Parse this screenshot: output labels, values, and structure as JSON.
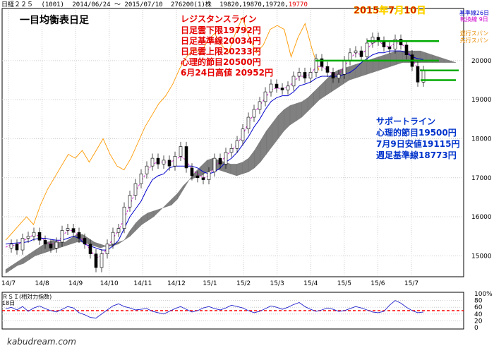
{
  "header": {
    "symbol": "日経２２５",
    "code": "(1001)",
    "range": "2014/06/24 ～ 2015/07/10",
    "volume": "276200(1)株",
    "ohlc": "19820,19870,19720,",
    "last": "19770"
  },
  "chart_title": "一目均衡表日足",
  "date_title": "2015年7月10日",
  "resistance": {
    "heading": "レジスタンスライン",
    "lines": [
      "日足雲下限19792円",
      "日足基準線20034円",
      "日足雲上限20233円",
      "心理的節目20500円",
      "6月24日高値 20952円"
    ]
  },
  "support": {
    "heading": "サポートライン",
    "lines": [
      "心理的節目19500円",
      "7月9日安値19115円",
      "週足基準線18773円"
    ]
  },
  "legend": {
    "kijun": "基準線26日",
    "tenkan": "転換線 9日",
    "chikou": "遅行スパン",
    "senko": "先行スパン"
  },
  "colors": {
    "kijun": "#0000cc",
    "tenkan": "#cc00cc",
    "chikou": "#ff9900",
    "cloud": "#808080",
    "rsi": "#2222cc",
    "support_line": "#00aa00",
    "rsi_ref": "#ff0000"
  },
  "rsi_label": "ＲＳＩ(相対力指数)",
  "rsi_period": "18日",
  "watermark": "kabudream.com",
  "chart_data": {
    "type": "line",
    "x_ticks": [
      "14/7",
      "14/8",
      "14/9",
      "14/10",
      "14/11",
      "14/12",
      "15/1",
      "15/2",
      "15/3",
      "15/4",
      "15/5",
      "15/6",
      "15/7"
    ],
    "y_ticks": [
      15000,
      16000,
      17000,
      18000,
      19000,
      20000
    ],
    "ylim": [
      14500,
      21300
    ],
    "horizontal_levels": [
      20500,
      20000,
      19750,
      19500
    ],
    "series": [
      {
        "key": "price",
        "values": [
          15200,
          15300,
          15150,
          15450,
          15500,
          15600,
          15400,
          15300,
          15200,
          15350,
          15650,
          15700,
          15600,
          15450,
          15300,
          15050,
          14700,
          15050,
          15300,
          15600,
          15700,
          16250,
          16550,
          16850,
          17100,
          17300,
          17500,
          17350,
          17450,
          17300,
          17550,
          17800,
          17250,
          17050,
          17000,
          16950,
          17150,
          17500,
          17350,
          17650,
          17750,
          17950,
          18250,
          18550,
          18750,
          18950,
          19200,
          19400,
          19300,
          19250,
          19350,
          19600,
          19700,
          19550,
          19700,
          20050,
          19850,
          19700,
          19550,
          19650,
          20000,
          20200,
          20250,
          20100,
          20450,
          20600,
          20500,
          20350,
          20300,
          20550,
          20400,
          20150,
          19850,
          19450,
          19750
        ]
      },
      {
        "key": "kijun",
        "values": [
          15300,
          15320,
          15330,
          15340,
          15360,
          15420,
          15450,
          15450,
          15420,
          15400,
          15400,
          15450,
          15500,
          15450,
          15300,
          15250,
          15200,
          15150,
          15150,
          15250,
          15400,
          15700,
          16000,
          16200,
          16400,
          16700,
          16950,
          17050,
          17100,
          17250,
          17300,
          17300,
          17300,
          17300,
          17250,
          17150,
          17100,
          17150,
          17250,
          17400,
          17500,
          17650,
          17850,
          18050,
          18300,
          18500,
          18750,
          18950,
          19050,
          19100,
          19100,
          19200,
          19350,
          19400,
          19450,
          19550,
          19600,
          19600,
          19600,
          19600,
          19650,
          19700,
          19800,
          19950,
          20050,
          20150,
          20200,
          20200,
          20250,
          20250,
          20250,
          20200,
          20100,
          20050,
          20030
        ]
      },
      {
        "key": "tenkan",
        "values": [
          15220,
          15280,
          15260,
          15380,
          15450,
          15550,
          15500,
          15380,
          15300,
          15320,
          15500,
          15650,
          15650,
          15500,
          15350,
          15150,
          14950,
          15000,
          15200,
          15450,
          15650,
          15950,
          16300,
          16650,
          16900,
          17150,
          17350,
          17400,
          17400,
          17400,
          17450,
          17550,
          17450,
          17200,
          17100,
          17000,
          17050,
          17300,
          17400,
          17550,
          17700,
          17850,
          18100,
          18400,
          18650,
          18850,
          19050,
          19250,
          19300,
          19280,
          19320,
          19450,
          19600,
          19600,
          19650,
          19850,
          19850,
          19750,
          19650,
          19650,
          19850,
          20050,
          20200,
          20150,
          20300,
          20450,
          20500,
          20400,
          20350,
          20450,
          20450,
          20300,
          20050,
          19800,
          19750
        ]
      },
      {
        "key": "senkou_a",
        "values": [
          14650,
          14750,
          14850,
          14950,
          15050,
          15150,
          15250,
          15350,
          15400,
          15350,
          15350,
          15450,
          15550,
          15550,
          15450,
          15350,
          15300,
          15250,
          15250,
          15300,
          15400,
          15650,
          15850,
          16000,
          16100,
          16150,
          16200,
          16250,
          16300,
          16450,
          16700,
          16950,
          17150,
          17300,
          17450,
          17500,
          17450,
          17400,
          17350,
          17350,
          17400,
          17500,
          17700,
          17950,
          18200,
          18400,
          18600,
          18750,
          18850,
          18900,
          18950,
          19050,
          19200,
          19350,
          19500,
          19650,
          19750,
          19800,
          19850,
          19900,
          19950,
          20000,
          20050,
          20100,
          20150,
          20200,
          20250,
          20250,
          20250,
          20250,
          20250,
          20200,
          20150,
          20100,
          20050,
          20000,
          19950
        ]
      },
      {
        "key": "senkou_b",
        "values": [
          14550,
          14650,
          14750,
          14800,
          14900,
          15000,
          15050,
          15100,
          15150,
          15200,
          15250,
          15300,
          15350,
          15350,
          15300,
          15250,
          15200,
          15250,
          15300,
          15350,
          15400,
          15500,
          15650,
          15800,
          15900,
          16000,
          16150,
          16300,
          16450,
          16600,
          16800,
          16950,
          17000,
          17050,
          17150,
          17200,
          17200,
          17150,
          17100,
          17050,
          17100,
          17150,
          17250,
          17400,
          17600,
          17800,
          18000,
          18200,
          18350,
          18450,
          18550,
          18700,
          18850,
          19000,
          19100,
          19200,
          19300,
          19400,
          19500,
          19550,
          19600,
          19650,
          19700,
          19750,
          19800,
          19850,
          19900,
          19950,
          19950,
          19950,
          19950,
          19950,
          19950,
          19950,
          19950,
          19950,
          19950
        ]
      },
      {
        "key": "chikou",
        "values": [
          15400,
          15600,
          15800,
          16000,
          15800,
          16300,
          16700,
          17000,
          17300,
          17600,
          17500,
          17700,
          17400,
          17700,
          18000,
          17600,
          17300,
          17200,
          17500,
          17900,
          18300,
          18600,
          18900,
          19100,
          19400,
          19800,
          20100,
          20300,
          20200,
          20500,
          20700,
          20400,
          20200,
          20700,
          21100,
          20600,
          20200,
          20400,
          20800,
          20900,
          20800,
          20100,
          20600,
          20950,
          20300,
          19750
        ]
      }
    ],
    "rsi": {
      "ylim": [
        0,
        100
      ],
      "y_ticks": [
        "100%",
        "80",
        "60",
        "40",
        "20",
        "0"
      ],
      "reference": 50,
      "values": [
        55,
        60,
        52,
        62,
        48,
        58,
        64,
        56,
        50,
        46,
        54,
        62,
        58,
        44,
        38,
        30,
        28,
        40,
        52,
        64,
        70,
        62,
        58,
        52,
        54,
        56,
        48,
        44,
        40,
        48,
        56,
        62,
        54,
        46,
        50,
        58,
        62,
        56,
        52,
        58,
        66,
        62,
        58,
        50,
        44,
        48,
        56,
        64,
        60,
        54,
        60,
        68,
        74,
        62,
        54,
        48,
        52,
        58,
        54,
        48,
        50,
        56,
        62,
        58,
        52,
        46,
        44,
        48,
        66,
        80,
        72,
        60,
        50,
        44,
        46
      ]
    }
  }
}
